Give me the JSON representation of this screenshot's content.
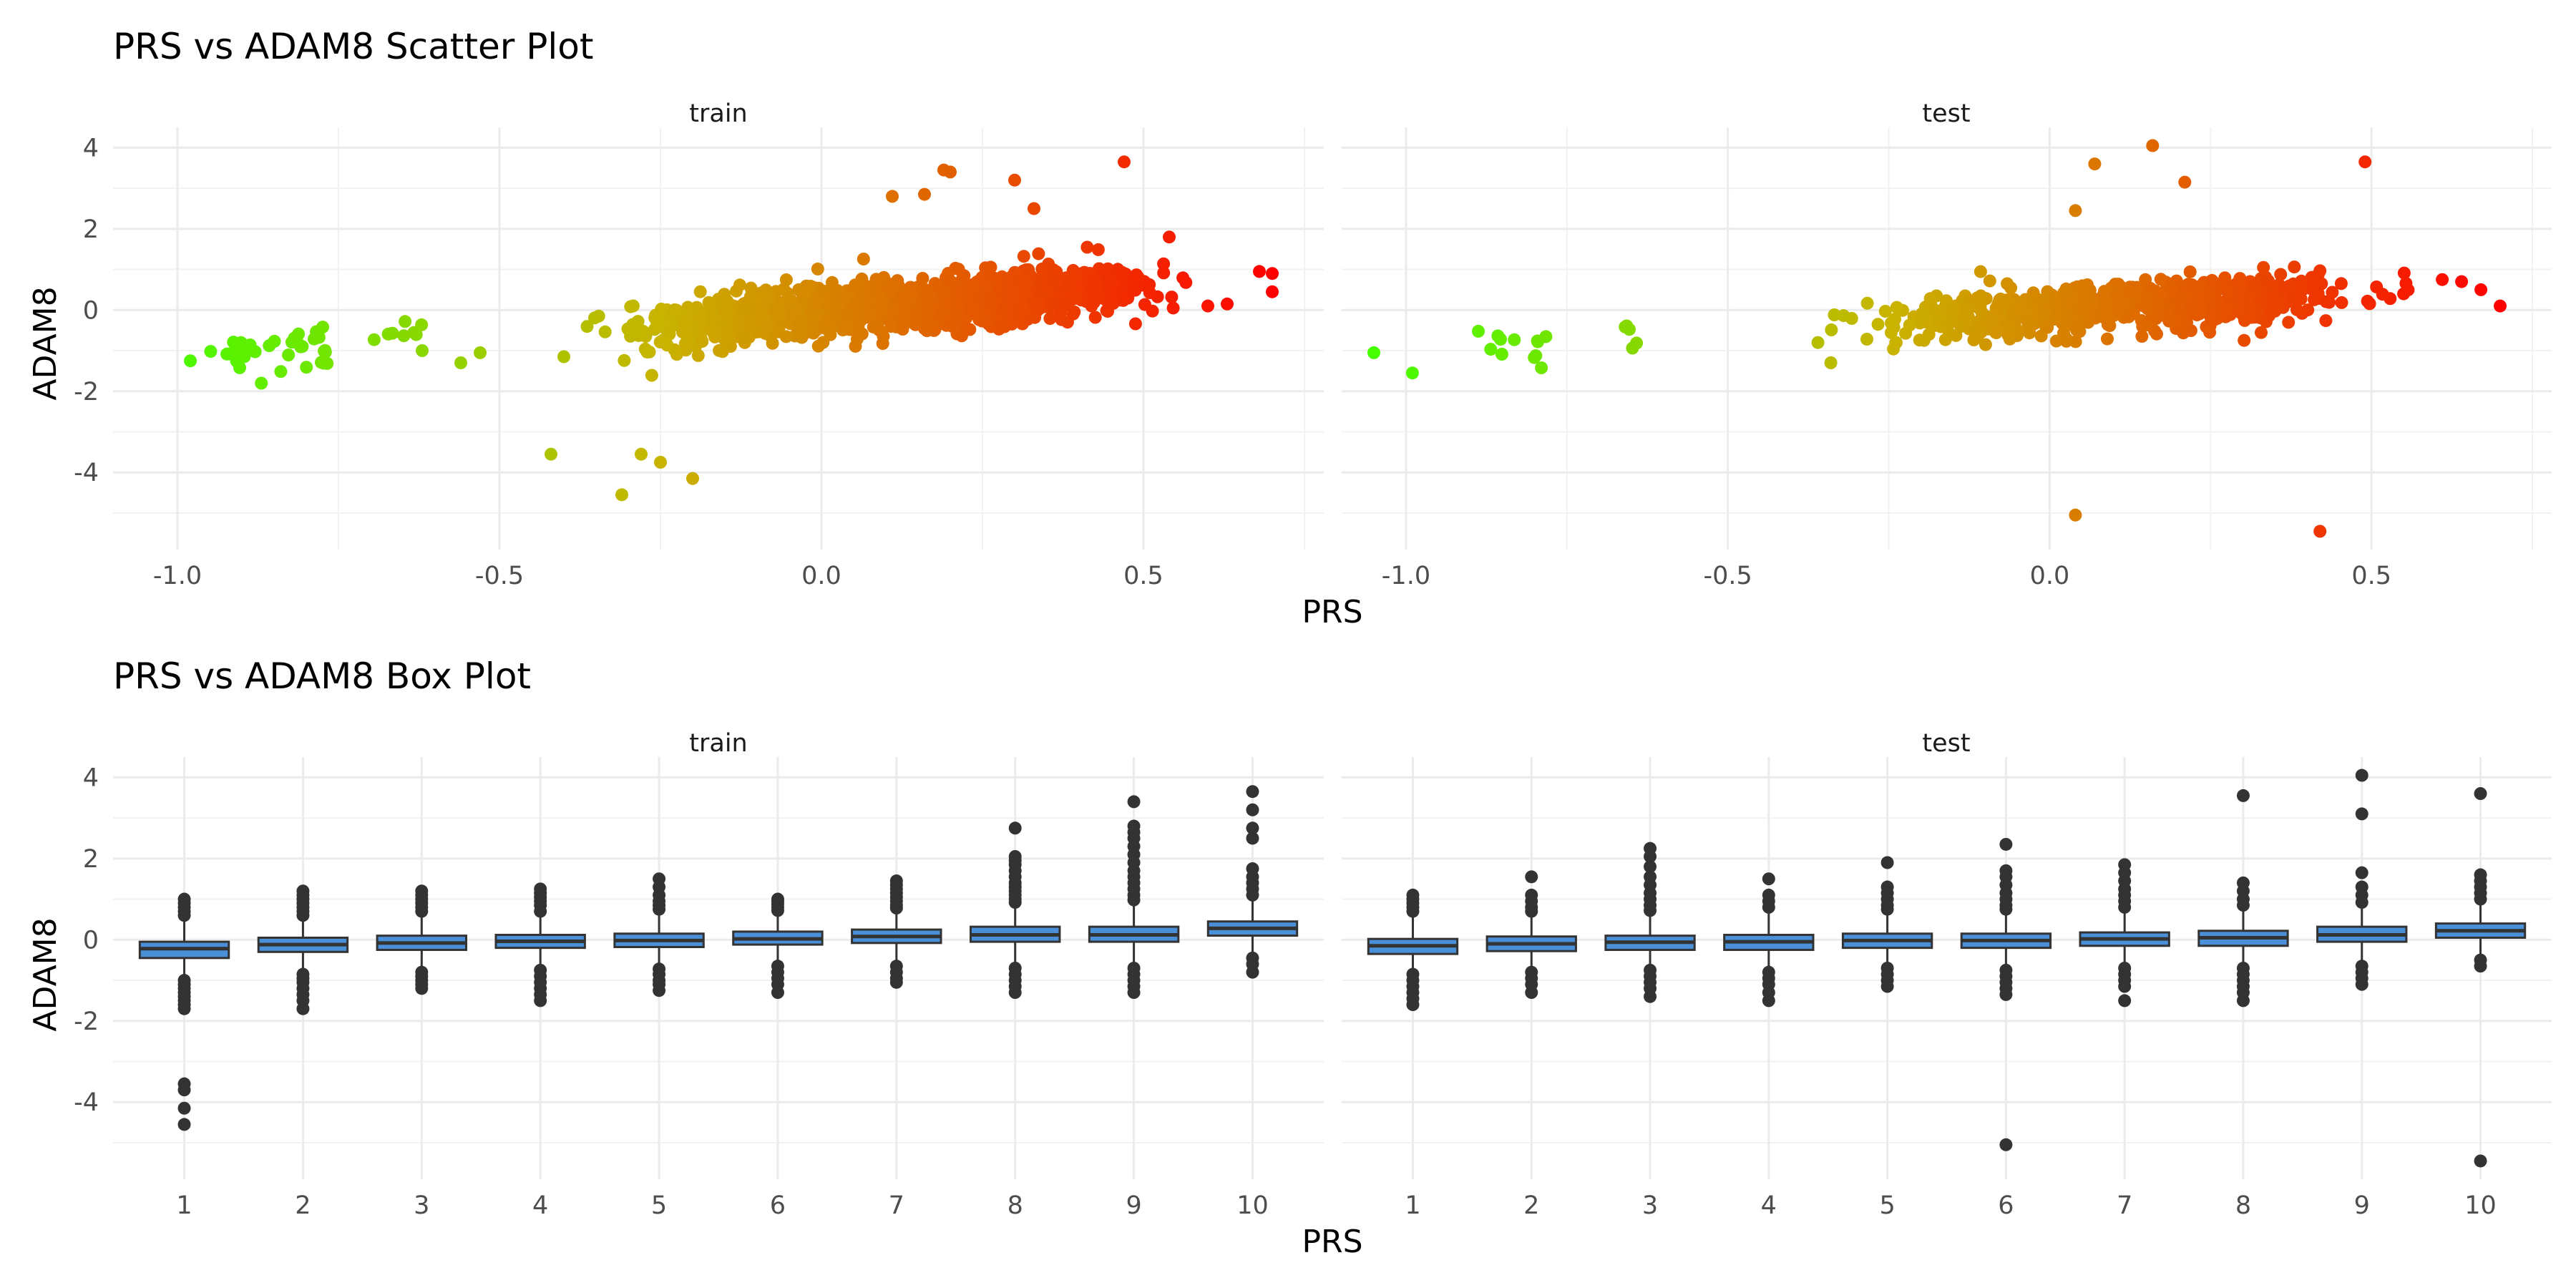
{
  "chart_data": [
    {
      "type": "scatter",
      "title": "PRS vs ADAM8 Scatter Plot",
      "xlabel": "PRS",
      "ylabel": "ADAM8",
      "xlim": [
        -1.1,
        0.78
      ],
      "ylim": [
        -5.9,
        4.5
      ],
      "x_ticks": [
        -1.0,
        -0.5,
        0.0,
        0.5
      ],
      "x_tick_labels": [
        "-1.0",
        "-0.5",
        "0.0",
        "0.5"
      ],
      "y_ticks": [
        4,
        2,
        0,
        -2,
        -4
      ],
      "y_tick_labels": [
        "4",
        "2",
        "0",
        "-2",
        "-4"
      ],
      "grid": true,
      "color_scale": {
        "low": "#44ff00",
        "mid": "#c8b400",
        "high": "#ff0000",
        "by": "PRS"
      },
      "facets": [
        {
          "name": "train",
          "trend": {
            "slope": 1.35,
            "intercept": -0.05,
            "noise": 0.32,
            "n": 1200,
            "x_range": [
              -0.4,
              0.6
            ]
          },
          "clusters": [
            {
              "x_range": [
                -0.95,
                -0.76
              ],
              "y_center": -1.05,
              "y_spread": 0.25,
              "n": 38
            },
            {
              "x_range": [
                -0.7,
                -0.62
              ],
              "y_center": -0.6,
              "y_spread": 0.25,
              "n": 8
            }
          ],
          "outliers": [
            {
              "x": -0.42,
              "y": -3.55
            },
            {
              "x": -0.31,
              "y": -4.55
            },
            {
              "x": -0.28,
              "y": -3.55
            },
            {
              "x": -0.25,
              "y": -3.75
            },
            {
              "x": -0.2,
              "y": -4.15
            },
            {
              "x": 0.19,
              "y": 3.45
            },
            {
              "x": 0.2,
              "y": 3.4
            },
            {
              "x": 0.3,
              "y": 3.2
            },
            {
              "x": 0.47,
              "y": 3.65
            },
            {
              "x": 0.16,
              "y": 2.85
            },
            {
              "x": 0.11,
              "y": 2.8
            },
            {
              "x": 0.33,
              "y": 2.5
            },
            {
              "x": 0.54,
              "y": 1.8
            },
            {
              "x": 0.6,
              "y": 0.1
            },
            {
              "x": 0.63,
              "y": 0.15
            },
            {
              "x": 0.68,
              "y": 0.95
            },
            {
              "x": 0.7,
              "y": 0.9
            },
            {
              "x": 0.7,
              "y": 0.45
            },
            {
              "x": -0.56,
              "y": -1.3
            },
            {
              "x": -0.53,
              "y": -1.05
            },
            {
              "x": -0.62,
              "y": -1.0
            },
            {
              "x": -0.98,
              "y": -1.25
            }
          ]
        },
        {
          "name": "test",
          "trend": {
            "slope": 0.95,
            "intercept": -0.02,
            "noise": 0.3,
            "n": 650,
            "x_range": [
              -0.36,
              0.56
            ]
          },
          "clusters": [
            {
              "x_range": [
                -0.9,
                -0.78
              ],
              "y_center": -1.05,
              "y_spread": 0.22,
              "n": 12
            },
            {
              "x_range": [
                -0.66,
                -0.64
              ],
              "y_center": -0.6,
              "y_spread": 0.3,
              "n": 5
            }
          ],
          "outliers": [
            {
              "x": -1.05,
              "y": -1.05
            },
            {
              "x": -0.99,
              "y": -1.55
            },
            {
              "x": -0.36,
              "y": -0.8
            },
            {
              "x": -0.34,
              "y": -1.3
            },
            {
              "x": 0.04,
              "y": -5.05
            },
            {
              "x": 0.42,
              "y": -5.45
            },
            {
              "x": 0.16,
              "y": 4.05
            },
            {
              "x": 0.49,
              "y": 3.65
            },
            {
              "x": 0.07,
              "y": 3.6
            },
            {
              "x": 0.21,
              "y": 3.15
            },
            {
              "x": 0.04,
              "y": 2.45
            },
            {
              "x": 0.61,
              "y": 0.75
            },
            {
              "x": 0.64,
              "y": 0.7
            },
            {
              "x": 0.67,
              "y": 0.5
            },
            {
              "x": 0.7,
              "y": 0.1
            },
            {
              "x": 0.55,
              "y": 0.4
            }
          ]
        }
      ]
    },
    {
      "type": "box",
      "title": "PRS vs ADAM8 Box Plot",
      "xlabel": "PRS",
      "ylabel": "ADAM8",
      "categories": [
        "1",
        "2",
        "3",
        "4",
        "5",
        "6",
        "7",
        "8",
        "9",
        "10"
      ],
      "ylim": [
        -5.9,
        4.5
      ],
      "y_ticks": [
        4,
        2,
        0,
        -2,
        -4
      ],
      "y_tick_labels": [
        "4",
        "2",
        "0",
        "-2",
        "-4"
      ],
      "grid": true,
      "box_fill": "#4a90d9",
      "facets": [
        {
          "name": "train",
          "boxes": [
            {
              "q1": -0.45,
              "median": -0.22,
              "q3": -0.05,
              "lower_whisker": -0.95,
              "upper_whisker": 0.5,
              "outliers_hi": [
                1.0,
                0.9,
                0.8,
                0.7,
                0.6
              ],
              "outliers_lo": [
                -1.0,
                -1.1,
                -1.2,
                -1.3,
                -1.4,
                -1.5,
                -1.6,
                -1.7,
                -3.55,
                -3.7,
                -4.15,
                -4.55
              ]
            },
            {
              "q1": -0.3,
              "median": -0.12,
              "q3": 0.05,
              "lower_whisker": -0.8,
              "upper_whisker": 0.55,
              "outliers_hi": [
                1.2,
                1.1,
                1.0,
                0.9,
                0.8,
                0.7,
                0.6
              ],
              "outliers_lo": [
                -0.85,
                -0.95,
                -1.05,
                -1.2,
                -1.35,
                -1.5,
                -1.7
              ]
            },
            {
              "q1": -0.25,
              "median": -0.08,
              "q3": 0.1,
              "lower_whisker": -0.7,
              "upper_whisker": 0.6,
              "outliers_hi": [
                1.2,
                1.1,
                1.0,
                0.9,
                0.8,
                0.7
              ],
              "outliers_lo": [
                -0.8,
                -0.9,
                -1.0,
                -1.1,
                -1.2
              ]
            },
            {
              "q1": -0.2,
              "median": -0.04,
              "q3": 0.12,
              "lower_whisker": -0.65,
              "upper_whisker": 0.6,
              "outliers_hi": [
                1.25,
                1.15,
                1.05,
                0.95,
                0.85,
                0.7
              ],
              "outliers_lo": [
                -0.75,
                -0.9,
                -1.05,
                -1.2,
                -1.35,
                -1.5
              ]
            },
            {
              "q1": -0.18,
              "median": -0.02,
              "q3": 0.15,
              "lower_whisker": -0.62,
              "upper_whisker": 0.65,
              "outliers_hi": [
                1.5,
                1.3,
                1.1,
                0.95,
                0.85,
                0.75
              ],
              "outliers_lo": [
                -0.72,
                -0.85,
                -1.0,
                -1.1,
                -1.25
              ]
            },
            {
              "q1": -0.12,
              "median": 0.02,
              "q3": 0.2,
              "lower_whisker": -0.55,
              "upper_whisker": 0.65,
              "outliers_hi": [
                1.0,
                0.95,
                0.88,
                0.8,
                0.72
              ],
              "outliers_lo": [
                -0.65,
                -0.8,
                -0.95,
                -1.1,
                -1.3
              ]
            },
            {
              "q1": -0.08,
              "median": 0.08,
              "q3": 0.25,
              "lower_whisker": -0.55,
              "upper_whisker": 0.7,
              "outliers_hi": [
                1.45,
                1.35,
                1.25,
                1.15,
                1.05,
                0.95,
                0.85,
                0.78
              ],
              "outliers_lo": [
                -0.65,
                -0.8,
                -0.95,
                -1.05
              ]
            },
            {
              "q1": -0.05,
              "median": 0.12,
              "q3": 0.32,
              "lower_whisker": -0.6,
              "upper_whisker": 0.85,
              "outliers_hi": [
                2.75,
                2.05,
                1.95,
                1.85,
                1.7,
                1.55,
                1.4,
                1.3,
                1.2,
                1.1,
                1.0,
                0.92
              ],
              "outliers_lo": [
                -0.7,
                -0.85,
                -1.0,
                -1.15,
                -1.3
              ]
            },
            {
              "q1": -0.05,
              "median": 0.12,
              "q3": 0.32,
              "lower_whisker": -0.6,
              "upper_whisker": 0.9,
              "outliers_hi": [
                3.4,
                2.8,
                2.65,
                2.5,
                2.3,
                2.1,
                1.9,
                1.7,
                1.55,
                1.4,
                1.25,
                1.1,
                0.98
              ],
              "outliers_lo": [
                -0.7,
                -0.85,
                -1.0,
                -1.15,
                -1.3
              ]
            },
            {
              "q1": 0.1,
              "median": 0.28,
              "q3": 0.45,
              "lower_whisker": -0.4,
              "upper_whisker": 1.0,
              "outliers_hi": [
                3.65,
                3.2,
                2.75,
                2.5,
                1.75,
                1.55,
                1.4,
                1.25,
                1.1
              ],
              "outliers_lo": [
                -0.45,
                -0.6,
                -0.8
              ]
            }
          ]
        },
        {
          "name": "test",
          "boxes": [
            {
              "q1": -0.35,
              "median": -0.15,
              "q3": 0.02,
              "lower_whisker": -0.8,
              "upper_whisker": 0.6,
              "outliers_hi": [
                1.1,
                1.0,
                0.9,
                0.8,
                0.7
              ],
              "outliers_lo": [
                -0.85,
                -1.0,
                -1.15,
                -1.3,
                -1.45,
                -1.6
              ]
            },
            {
              "q1": -0.28,
              "median": -0.1,
              "q3": 0.08,
              "lower_whisker": -0.75,
              "upper_whisker": 0.6,
              "outliers_hi": [
                1.55,
                1.1,
                0.95,
                0.8,
                0.7
              ],
              "outliers_lo": [
                -0.8,
                -0.95,
                -1.1,
                -1.3
              ]
            },
            {
              "q1": -0.25,
              "median": -0.06,
              "q3": 0.1,
              "lower_whisker": -0.7,
              "upper_whisker": 0.65,
              "outliers_hi": [
                2.25,
                2.05,
                1.8,
                1.55,
                1.35,
                1.15,
                1.0,
                0.85,
                0.72
              ],
              "outliers_lo": [
                -0.75,
                -0.9,
                -1.05,
                -1.2,
                -1.4
              ]
            },
            {
              "q1": -0.25,
              "median": -0.05,
              "q3": 0.12,
              "lower_whisker": -0.7,
              "upper_whisker": 0.65,
              "outliers_hi": [
                1.5,
                1.1,
                0.95,
                0.8
              ],
              "outliers_lo": [
                -0.8,
                -0.95,
                -1.1,
                -1.3,
                -1.5
              ]
            },
            {
              "q1": -0.2,
              "median": -0.02,
              "q3": 0.15,
              "lower_whisker": -0.65,
              "upper_whisker": 0.7,
              "outliers_hi": [
                1.9,
                1.3,
                1.15,
                1.0,
                0.85,
                0.75
              ],
              "outliers_lo": [
                -0.7,
                -0.85,
                -1.0,
                -1.15
              ]
            },
            {
              "q1": -0.2,
              "median": -0.02,
              "q3": 0.15,
              "lower_whisker": -0.65,
              "upper_whisker": 0.7,
              "outliers_hi": [
                2.35,
                1.7,
                1.55,
                1.35,
                1.15,
                1.0,
                0.85,
                0.75
              ],
              "outliers_lo": [
                -0.75,
                -0.9,
                -1.05,
                -1.2,
                -1.35,
                -5.05
              ]
            },
            {
              "q1": -0.15,
              "median": 0.02,
              "q3": 0.18,
              "lower_whisker": -0.6,
              "upper_whisker": 0.7,
              "outliers_hi": [
                1.85,
                1.65,
                1.45,
                1.25,
                1.1,
                0.95,
                0.8
              ],
              "outliers_lo": [
                -0.7,
                -0.85,
                -1.0,
                -1.15,
                -1.5
              ]
            },
            {
              "q1": -0.15,
              "median": 0.05,
              "q3": 0.22,
              "lower_whisker": -0.6,
              "upper_whisker": 0.75,
              "outliers_hi": [
                3.55,
                1.4,
                1.2,
                1.0,
                0.85
              ],
              "outliers_lo": [
                -0.7,
                -0.85,
                -1.0,
                -1.15,
                -1.3,
                -1.5
              ]
            },
            {
              "q1": -0.05,
              "median": 0.12,
              "q3": 0.32,
              "lower_whisker": -0.55,
              "upper_whisker": 0.8,
              "outliers_hi": [
                4.05,
                3.1,
                1.65,
                1.3,
                1.1,
                0.92
              ],
              "outliers_lo": [
                -0.65,
                -0.8,
                -0.95,
                -1.1
              ]
            },
            {
              "q1": 0.05,
              "median": 0.22,
              "q3": 0.4,
              "lower_whisker": -0.45,
              "upper_whisker": 0.9,
              "outliers_hi": [
                3.6,
                1.6,
                1.45,
                1.3,
                1.15,
                1.0
              ],
              "outliers_lo": [
                -0.5,
                -0.65,
                -5.45
              ]
            }
          ]
        }
      ]
    }
  ]
}
